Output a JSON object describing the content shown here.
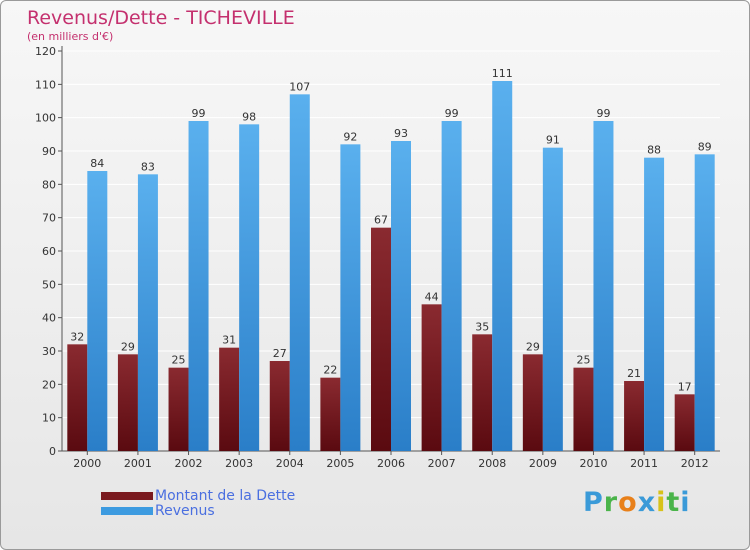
{
  "header": {
    "title": "Revenus/Dette - TICHEVILLE",
    "subtitle": "(en milliers d'€)"
  },
  "logo": {
    "letters": [
      "P",
      "r",
      "o",
      "x",
      "i",
      "t",
      "i"
    ],
    "colors": [
      "#3a9ad8",
      "#4ab44a",
      "#e8801a",
      "#3a9ad8",
      "#d8c21a",
      "#4ab44a",
      "#3a9ad8"
    ]
  },
  "colors": {
    "debt": "#7a1a1f",
    "revenue": "#3d9be0",
    "axis_text": "#333333",
    "gridline": "#ffffff",
    "legend_text": "#4a6fe0"
  },
  "chart_data": {
    "type": "bar",
    "title": "Revenus/Dette - TICHEVILLE",
    "subtitle": "(en milliers d'€)",
    "categories": [
      "2000",
      "2001",
      "2002",
      "2003",
      "2004",
      "2005",
      "2006",
      "2007",
      "2008",
      "2009",
      "2010",
      "2011",
      "2012"
    ],
    "series": [
      {
        "name": "Montant de la Dette",
        "values": [
          32,
          29,
          25,
          31,
          27,
          22,
          67,
          44,
          35,
          29,
          25,
          21,
          17
        ]
      },
      {
        "name": "Revenus",
        "values": [
          84,
          83,
          99,
          98,
          107,
          92,
          93,
          99,
          111,
          91,
          99,
          88,
          89
        ]
      }
    ],
    "yticks": [
      "0",
      "10",
      "20",
      "30",
      "40",
      "50",
      "60",
      "70",
      "80",
      "90",
      "100",
      "110",
      "120"
    ],
    "ylim": [
      0,
      120
    ],
    "xlabel": "",
    "ylabel": "",
    "grid": true,
    "legend_position": "bottom-left"
  }
}
